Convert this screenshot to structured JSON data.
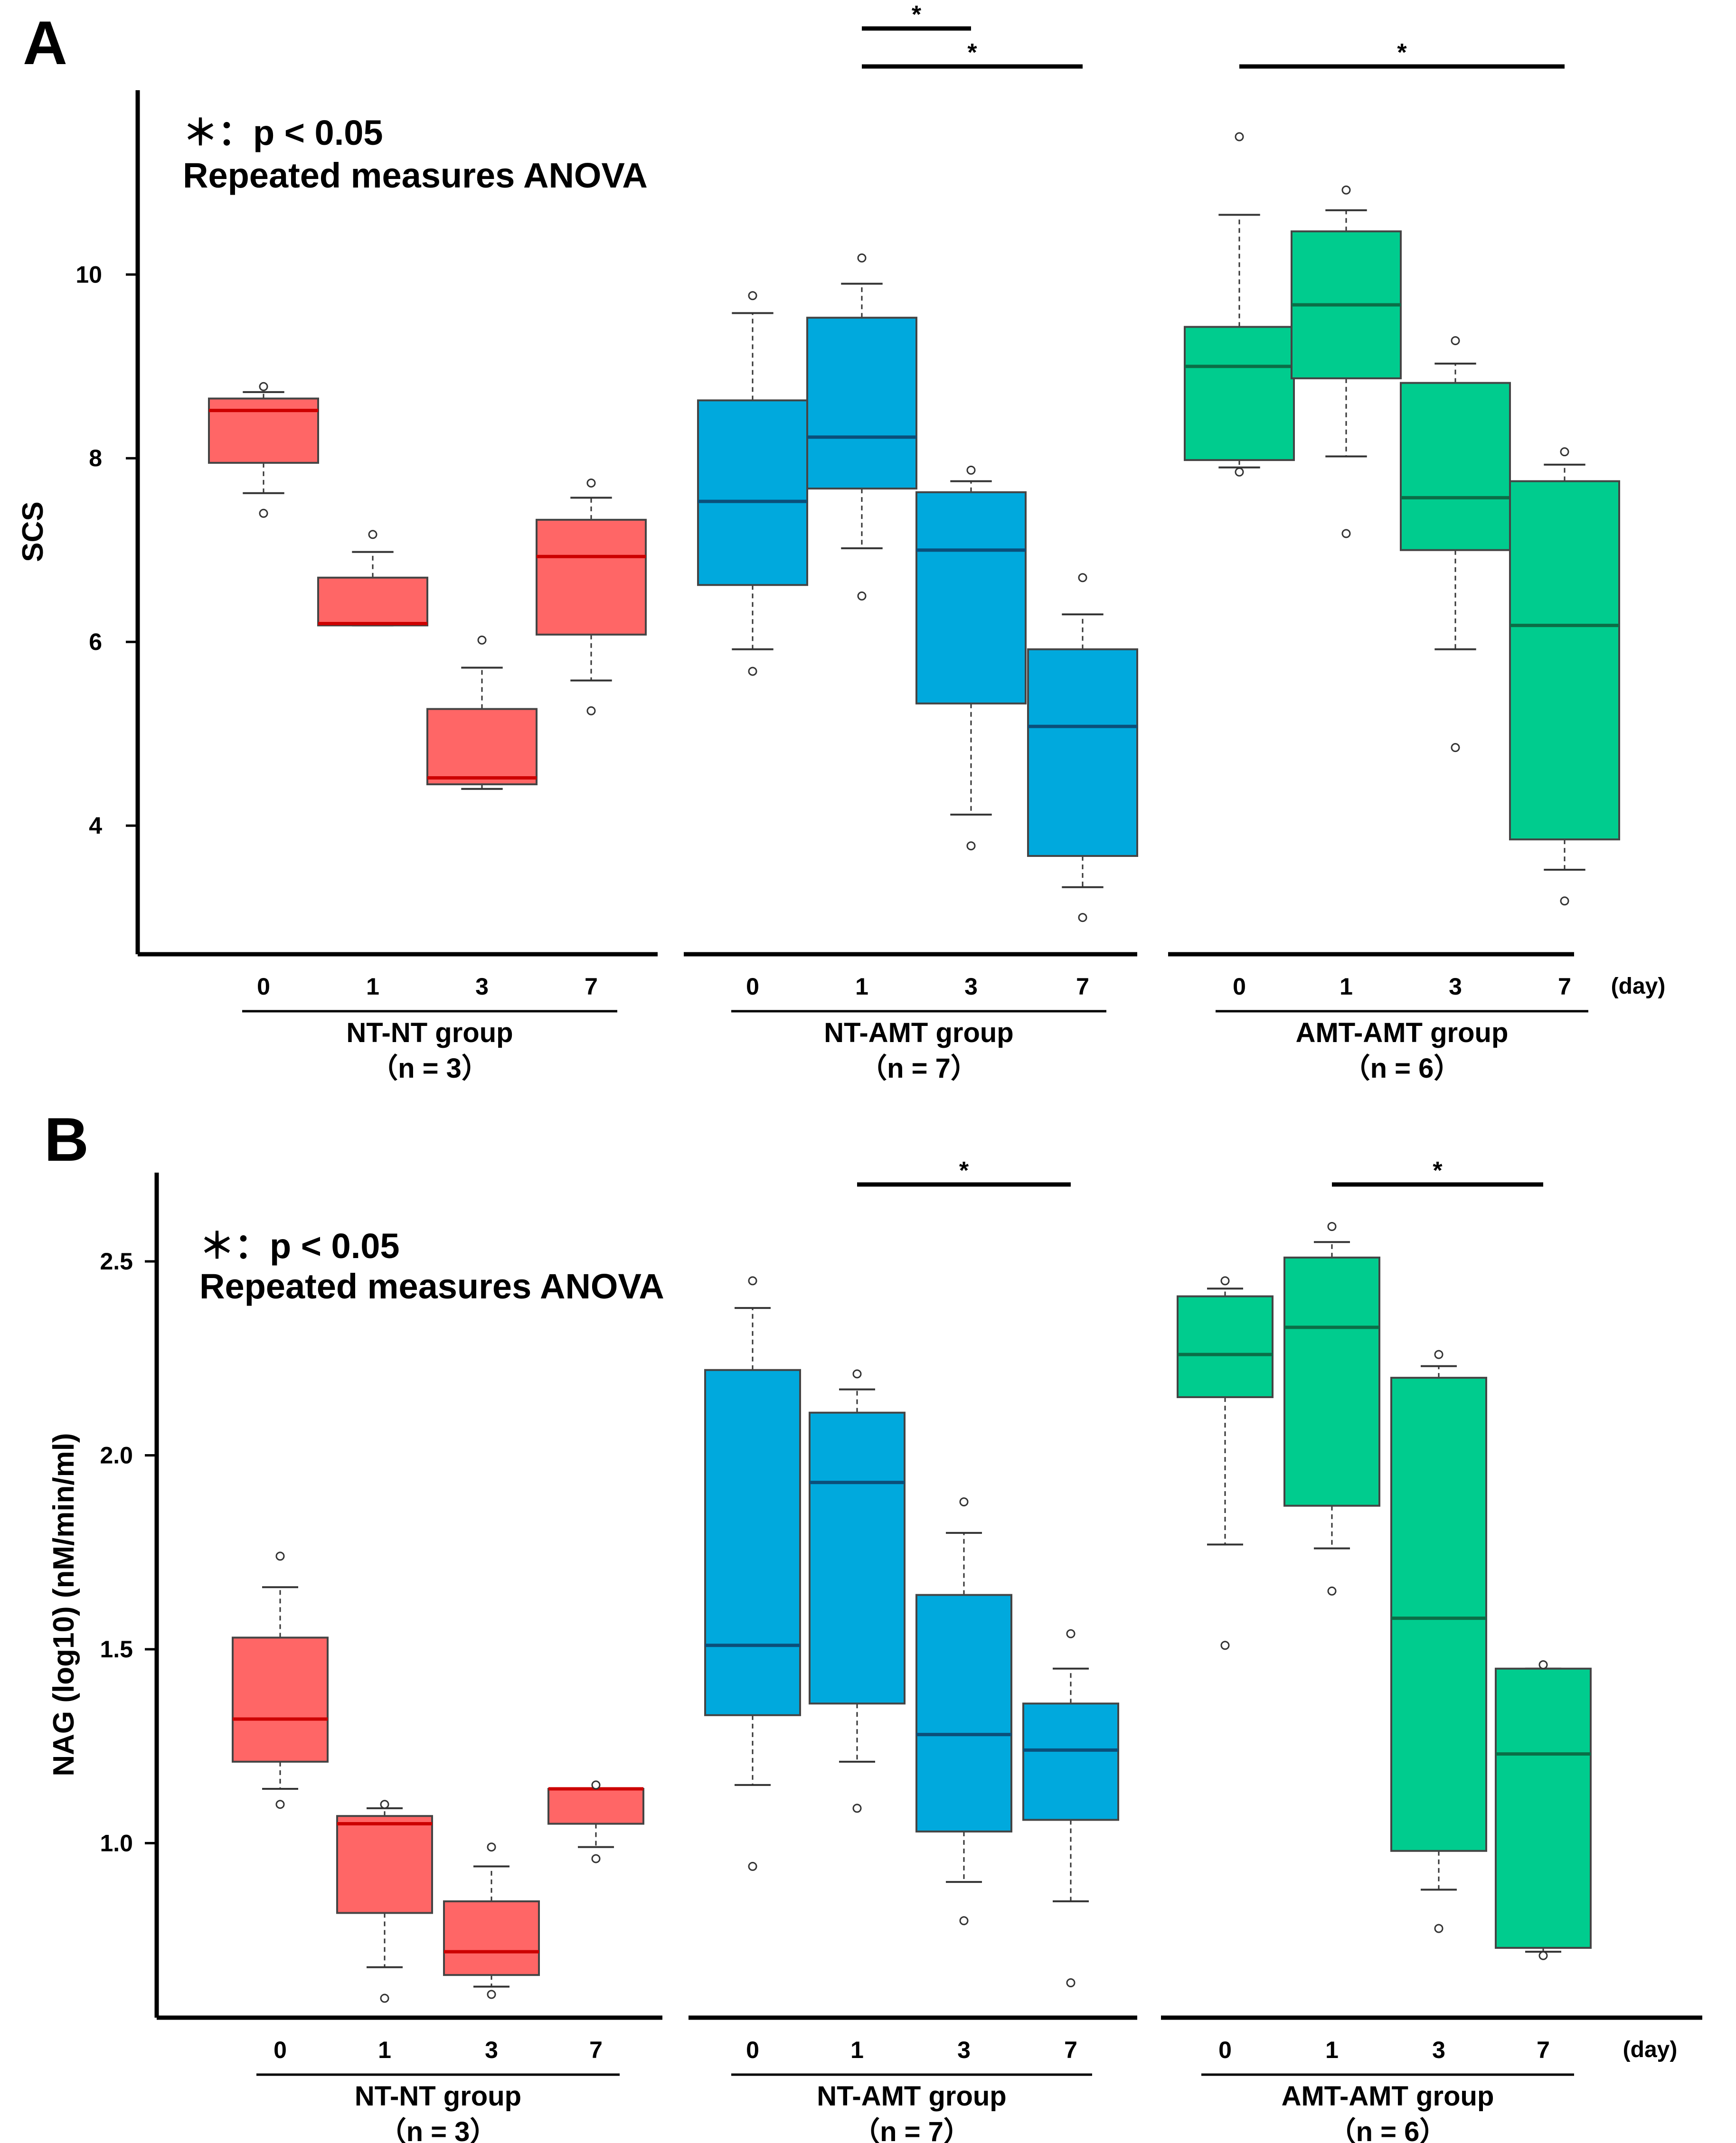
{
  "figure": {
    "legend_line1": "＊：p < 0.05",
    "legend_line2": "Repeated measures ANOVA",
    "day_unit": "(day)",
    "colors": {
      "NT-NT": "#ff6666",
      "NT-AMT": "#00a9dd",
      "AMT-AMT": "#00cc8e"
    },
    "median_colors": {
      "NT-NT": "#cc0000",
      "NT-AMT": "#0b4f7a",
      "AMT-AMT": "#0b6e47"
    }
  },
  "chart_data": [
    {
      "panel": "A",
      "type": "box",
      "ylabel": "SCS",
      "ylim": [
        2.6,
        11.8
      ],
      "yticks": [
        4,
        6,
        8,
        10
      ],
      "days": [
        "0",
        "1",
        "3",
        "7"
      ],
      "groups": [
        {
          "name": "NT-NT group",
          "n": "（n = 3）",
          "color_key": "NT-NT",
          "boxes": [
            {
              "day": "0",
              "q1": 7.95,
              "median": 8.52,
              "q3": 8.65,
              "whisker_low": 7.62,
              "whisker_high": 8.72,
              "outliers": [
                7.4,
                8.78
              ]
            },
            {
              "day": "1",
              "q1": 6.18,
              "median": 6.2,
              "q3": 6.7,
              "whisker_low": 6.18,
              "whisker_high": 6.98,
              "outliers": [
                7.17
              ]
            },
            {
              "day": "3",
              "q1": 4.45,
              "median": 4.52,
              "q3": 5.27,
              "whisker_low": 4.4,
              "whisker_high": 5.72,
              "outliers": [
                6.02
              ]
            },
            {
              "day": "7",
              "q1": 6.08,
              "median": 6.93,
              "q3": 7.33,
              "whisker_low": 5.58,
              "whisker_high": 7.57,
              "outliers": [
                5.25,
                7.73
              ]
            }
          ]
        },
        {
          "name": "NT-AMT group",
          "n": "（n = 7）",
          "color_key": "NT-AMT",
          "boxes": [
            {
              "day": "0",
              "q1": 6.62,
              "median": 7.53,
              "q3": 8.63,
              "whisker_low": 5.92,
              "whisker_high": 9.58,
              "outliers": [
                5.68,
                9.77
              ]
            },
            {
              "day": "1",
              "q1": 7.67,
              "median": 8.23,
              "q3": 9.53,
              "whisker_low": 7.02,
              "whisker_high": 9.9,
              "outliers": [
                6.5,
                10.18
              ]
            },
            {
              "day": "3",
              "q1": 5.33,
              "median": 7.0,
              "q3": 7.63,
              "whisker_low": 4.12,
              "whisker_high": 7.75,
              "outliers": [
                3.78,
                7.87
              ]
            },
            {
              "day": "7",
              "q1": 3.67,
              "median": 5.08,
              "q3": 5.92,
              "whisker_low": 3.33,
              "whisker_high": 6.3,
              "outliers": [
                3.0,
                6.7
              ]
            }
          ]
        },
        {
          "name": "AMT-AMT group",
          "n": "（n = 6）",
          "color_key": "AMT-AMT",
          "boxes": [
            {
              "day": "0",
              "q1": 7.98,
              "median": 9.0,
              "q3": 9.43,
              "whisker_low": 7.9,
              "whisker_high": 10.65,
              "outliers": [
                7.85,
                11.5
              ]
            },
            {
              "day": "1",
              "q1": 8.87,
              "median": 9.67,
              "q3": 10.47,
              "whisker_low": 8.02,
              "whisker_high": 10.7,
              "outliers": [
                7.18,
                10.92
              ]
            },
            {
              "day": "3",
              "q1": 7.0,
              "median": 7.57,
              "q3": 8.82,
              "whisker_low": 5.92,
              "whisker_high": 9.03,
              "outliers": [
                4.85,
                9.28
              ]
            },
            {
              "day": "7",
              "q1": 3.85,
              "median": 6.18,
              "q3": 7.75,
              "whisker_low": 3.52,
              "whisker_high": 7.93,
              "outliers": [
                3.18,
                8.07
              ]
            }
          ]
        }
      ],
      "significance": [
        {
          "group": "NT-AMT group",
          "from_day": "1",
          "to_day": "3",
          "label": "*",
          "tier": 1
        },
        {
          "group": "NT-AMT group",
          "from_day": "1",
          "to_day": "7",
          "label": "*",
          "tier": 0
        },
        {
          "group": "AMT-AMT group",
          "from_day": "0",
          "to_day": "7",
          "label": "*",
          "tier": 0
        }
      ]
    },
    {
      "panel": "B",
      "type": "box",
      "ylabel": "NAG (log10) (nM/min/ml)",
      "ylim": [
        0.55,
        2.68
      ],
      "yticks": [
        "1.0",
        "1.5",
        "2.0",
        "2.5"
      ],
      "days": [
        "0",
        "1",
        "3",
        "7"
      ],
      "groups": [
        {
          "name": "NT-NT group",
          "n": "（n = 3）",
          "color_key": "NT-NT",
          "boxes": [
            {
              "day": "0",
              "q1": 1.21,
              "median": 1.32,
              "q3": 1.53,
              "whisker_low": 1.14,
              "whisker_high": 1.66,
              "outliers": [
                1.1,
                1.74
              ]
            },
            {
              "day": "1",
              "q1": 0.82,
              "median": 1.05,
              "q3": 1.07,
              "whisker_low": 0.68,
              "whisker_high": 1.09,
              "outliers": [
                0.6,
                1.1
              ]
            },
            {
              "day": "3",
              "q1": 0.66,
              "median": 0.72,
              "q3": 0.85,
              "whisker_low": 0.63,
              "whisker_high": 0.94,
              "outliers": [
                0.61,
                0.99
              ]
            },
            {
              "day": "7",
              "q1": 1.05,
              "median": 1.14,
              "q3": 1.14,
              "whisker_low": 0.99,
              "whisker_high": 1.14,
              "outliers": [
                0.96,
                1.15
              ]
            }
          ]
        },
        {
          "name": "NT-AMT group",
          "n": "（n = 7）",
          "color_key": "NT-AMT",
          "boxes": [
            {
              "day": "0",
              "q1": 1.33,
              "median": 1.51,
              "q3": 2.22,
              "whisker_low": 1.15,
              "whisker_high": 2.38,
              "outliers": [
                0.94,
                2.45
              ]
            },
            {
              "day": "1",
              "q1": 1.36,
              "median": 1.93,
              "q3": 2.11,
              "whisker_low": 1.21,
              "whisker_high": 2.17,
              "outliers": [
                1.09,
                2.21
              ]
            },
            {
              "day": "3",
              "q1": 1.03,
              "median": 1.28,
              "q3": 1.64,
              "whisker_low": 0.9,
              "whisker_high": 1.8,
              "outliers": [
                0.8,
                1.88
              ]
            },
            {
              "day": "7",
              "q1": 1.06,
              "median": 1.24,
              "q3": 1.36,
              "whisker_low": 0.85,
              "whisker_high": 1.45,
              "outliers": [
                0.64,
                1.54
              ]
            }
          ]
        },
        {
          "name": "AMT-AMT group",
          "n": "（n = 6）",
          "color_key": "AMT-AMT",
          "boxes": [
            {
              "day": "0",
              "q1": 2.15,
              "median": 2.26,
              "q3": 2.41,
              "whisker_low": 1.77,
              "whisker_high": 2.43,
              "outliers": [
                1.51,
                2.45
              ]
            },
            {
              "day": "1",
              "q1": 1.87,
              "median": 2.33,
              "q3": 2.51,
              "whisker_low": 1.76,
              "whisker_high": 2.55,
              "outliers": [
                1.65,
                2.59
              ]
            },
            {
              "day": "3",
              "q1": 0.98,
              "median": 1.58,
              "q3": 2.2,
              "whisker_low": 0.88,
              "whisker_high": 2.23,
              "outliers": [
                0.78,
                2.26
              ]
            },
            {
              "day": "7",
              "q1": 0.73,
              "median": 1.23,
              "q3": 1.45,
              "whisker_low": 0.72,
              "whisker_high": 1.45,
              "outliers": [
                0.71,
                1.46
              ]
            }
          ]
        }
      ],
      "significance": [
        {
          "group": "NT-AMT group",
          "from_day": "1",
          "to_day": "7",
          "label": "*",
          "tier": 0
        },
        {
          "group": "AMT-AMT group",
          "from_day": "1",
          "to_day": "7",
          "label": "*",
          "tier": 0
        }
      ]
    }
  ]
}
